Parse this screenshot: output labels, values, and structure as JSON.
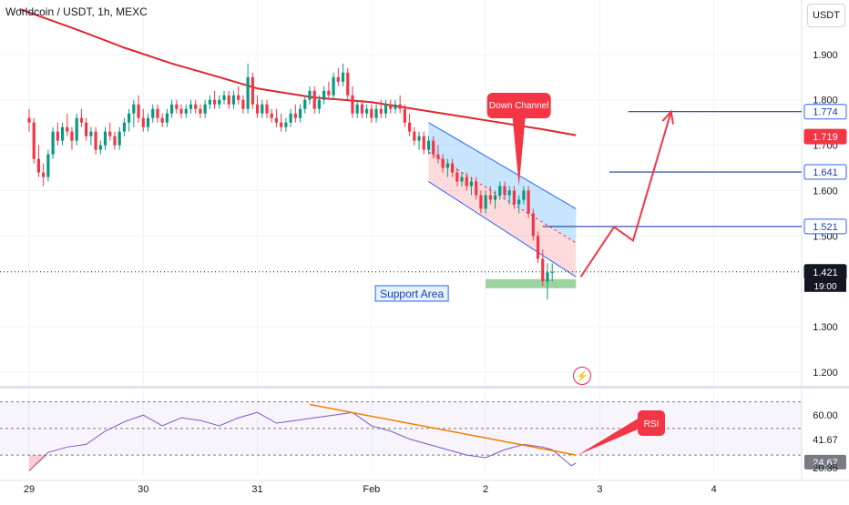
{
  "header": {
    "title": "Worldcoin / USDT, 1h, MEXC",
    "currency_button": "USDT"
  },
  "chart_data": [
    {
      "type": "candlestick",
      "pane": "price",
      "ylim": [
        1.17,
        2.02
      ],
      "yticks": [
        "1.900",
        "1.800",
        "1.700",
        "1.600",
        "1.500",
        "1.300",
        "1.200"
      ],
      "ytick_values": [
        1.9,
        1.8,
        1.7,
        1.6,
        1.5,
        1.3,
        1.2
      ],
      "x_labels": [
        "29",
        "30",
        "31",
        "Feb",
        "2",
        "3",
        "4"
      ],
      "x_label_values": [
        0,
        24,
        48,
        72,
        96,
        120,
        144
      ],
      "candles_ohlc": [
        [
          1.76,
          1.78,
          1.73,
          1.75
        ],
        [
          1.75,
          1.76,
          1.66,
          1.67
        ],
        [
          1.67,
          1.7,
          1.63,
          1.64
        ],
        [
          1.64,
          1.66,
          1.61,
          1.63
        ],
        [
          1.63,
          1.69,
          1.62,
          1.68
        ],
        [
          1.68,
          1.74,
          1.67,
          1.73
        ],
        [
          1.73,
          1.75,
          1.7,
          1.71
        ],
        [
          1.71,
          1.75,
          1.7,
          1.74
        ],
        [
          1.74,
          1.77,
          1.72,
          1.73
        ],
        [
          1.73,
          1.74,
          1.69,
          1.71
        ],
        [
          1.71,
          1.77,
          1.7,
          1.76
        ],
        [
          1.76,
          1.78,
          1.74,
          1.75
        ],
        [
          1.75,
          1.76,
          1.71,
          1.72
        ],
        [
          1.72,
          1.74,
          1.7,
          1.73
        ],
        [
          1.73,
          1.74,
          1.68,
          1.69
        ],
        [
          1.69,
          1.71,
          1.68,
          1.7
        ],
        [
          1.7,
          1.74,
          1.69,
          1.73
        ],
        [
          1.73,
          1.75,
          1.71,
          1.72
        ],
        [
          1.72,
          1.73,
          1.69,
          1.7
        ],
        [
          1.7,
          1.74,
          1.69,
          1.73
        ],
        [
          1.73,
          1.76,
          1.72,
          1.75
        ],
        [
          1.75,
          1.78,
          1.73,
          1.77
        ],
        [
          1.77,
          1.8,
          1.74,
          1.79
        ],
        [
          1.79,
          1.81,
          1.75,
          1.76
        ],
        [
          1.76,
          1.78,
          1.73,
          1.74
        ],
        [
          1.74,
          1.77,
          1.73,
          1.76
        ],
        [
          1.76,
          1.79,
          1.75,
          1.78
        ],
        [
          1.78,
          1.79,
          1.75,
          1.76
        ],
        [
          1.76,
          1.77,
          1.74,
          1.75
        ],
        [
          1.75,
          1.78,
          1.74,
          1.77
        ],
        [
          1.77,
          1.8,
          1.76,
          1.79
        ],
        [
          1.79,
          1.8,
          1.77,
          1.78
        ],
        [
          1.78,
          1.79,
          1.76,
          1.77
        ],
        [
          1.77,
          1.79,
          1.76,
          1.78
        ],
        [
          1.78,
          1.8,
          1.77,
          1.79
        ],
        [
          1.79,
          1.8,
          1.77,
          1.78
        ],
        [
          1.78,
          1.79,
          1.76,
          1.77
        ],
        [
          1.77,
          1.8,
          1.76,
          1.79
        ],
        [
          1.79,
          1.81,
          1.78,
          1.8
        ],
        [
          1.8,
          1.82,
          1.78,
          1.79
        ],
        [
          1.79,
          1.81,
          1.78,
          1.8
        ],
        [
          1.8,
          1.82,
          1.79,
          1.81
        ],
        [
          1.81,
          1.82,
          1.78,
          1.79
        ],
        [
          1.79,
          1.82,
          1.78,
          1.81
        ],
        [
          1.81,
          1.83,
          1.79,
          1.8
        ],
        [
          1.8,
          1.81,
          1.77,
          1.78
        ],
        [
          1.78,
          1.88,
          1.77,
          1.85
        ],
        [
          1.85,
          1.86,
          1.78,
          1.79
        ],
        [
          1.79,
          1.81,
          1.76,
          1.77
        ],
        [
          1.77,
          1.8,
          1.76,
          1.79
        ],
        [
          1.79,
          1.8,
          1.76,
          1.77
        ],
        [
          1.77,
          1.78,
          1.75,
          1.76
        ],
        [
          1.76,
          1.78,
          1.74,
          1.75
        ],
        [
          1.75,
          1.77,
          1.73,
          1.74
        ],
        [
          1.74,
          1.76,
          1.73,
          1.75
        ],
        [
          1.75,
          1.78,
          1.74,
          1.77
        ],
        [
          1.77,
          1.79,
          1.75,
          1.76
        ],
        [
          1.76,
          1.79,
          1.75,
          1.78
        ],
        [
          1.78,
          1.81,
          1.77,
          1.8
        ],
        [
          1.8,
          1.83,
          1.79,
          1.82
        ],
        [
          1.82,
          1.83,
          1.77,
          1.78
        ],
        [
          1.78,
          1.81,
          1.77,
          1.8
        ],
        [
          1.8,
          1.83,
          1.79,
          1.82
        ],
        [
          1.82,
          1.84,
          1.8,
          1.81
        ],
        [
          1.81,
          1.86,
          1.8,
          1.85
        ],
        [
          1.85,
          1.87,
          1.83,
          1.84
        ],
        [
          1.84,
          1.88,
          1.83,
          1.86
        ],
        [
          1.86,
          1.87,
          1.8,
          1.81
        ],
        [
          1.81,
          1.83,
          1.76,
          1.77
        ],
        [
          1.77,
          1.8,
          1.76,
          1.79
        ],
        [
          1.79,
          1.8,
          1.76,
          1.77
        ],
        [
          1.77,
          1.79,
          1.76,
          1.78
        ],
        [
          1.78,
          1.79,
          1.75,
          1.76
        ],
        [
          1.76,
          1.79,
          1.75,
          1.78
        ],
        [
          1.78,
          1.8,
          1.76,
          1.77
        ],
        [
          1.77,
          1.8,
          1.76,
          1.79
        ],
        [
          1.79,
          1.8,
          1.77,
          1.78
        ],
        [
          1.78,
          1.8,
          1.77,
          1.79
        ],
        [
          1.79,
          1.81,
          1.77,
          1.78
        ],
        [
          1.78,
          1.79,
          1.74,
          1.75
        ],
        [
          1.75,
          1.77,
          1.72,
          1.73
        ],
        [
          1.73,
          1.74,
          1.7,
          1.71
        ],
        [
          1.71,
          1.73,
          1.69,
          1.72
        ],
        [
          1.72,
          1.73,
          1.68,
          1.69
        ],
        [
          1.69,
          1.72,
          1.68,
          1.71
        ],
        [
          1.71,
          1.72,
          1.67,
          1.68
        ],
        [
          1.68,
          1.7,
          1.66,
          1.67
        ],
        [
          1.67,
          1.68,
          1.64,
          1.65
        ],
        [
          1.65,
          1.67,
          1.63,
          1.66
        ],
        [
          1.66,
          1.67,
          1.63,
          1.64
        ],
        [
          1.64,
          1.65,
          1.61,
          1.62
        ],
        [
          1.62,
          1.64,
          1.61,
          1.63
        ],
        [
          1.63,
          1.64,
          1.6,
          1.61
        ],
        [
          1.61,
          1.63,
          1.59,
          1.62
        ],
        [
          1.62,
          1.63,
          1.58,
          1.59
        ],
        [
          1.59,
          1.6,
          1.55,
          1.56
        ],
        [
          1.56,
          1.6,
          1.55,
          1.59
        ],
        [
          1.59,
          1.61,
          1.57,
          1.58
        ],
        [
          1.58,
          1.6,
          1.56,
          1.59
        ],
        [
          1.59,
          1.62,
          1.58,
          1.61
        ],
        [
          1.61,
          1.62,
          1.58,
          1.59
        ],
        [
          1.59,
          1.61,
          1.57,
          1.6
        ],
        [
          1.6,
          1.61,
          1.56,
          1.57
        ],
        [
          1.57,
          1.59,
          1.55,
          1.58
        ],
        [
          1.58,
          1.61,
          1.57,
          1.6
        ],
        [
          1.6,
          1.61,
          1.54,
          1.55
        ],
        [
          1.55,
          1.56,
          1.49,
          1.5
        ],
        [
          1.5,
          1.51,
          1.44,
          1.45
        ],
        [
          1.45,
          1.47,
          1.39,
          1.4
        ],
        [
          1.4,
          1.44,
          1.36,
          1.42
        ],
        [
          1.42,
          1.44,
          1.4,
          1.421
        ]
      ],
      "moving_average": [
        [
          -2,
          2.0
        ],
        [
          10,
          1.955
        ],
        [
          20,
          1.915
        ],
        [
          30,
          1.88
        ],
        [
          40,
          1.85
        ],
        [
          48,
          1.825
        ],
        [
          60,
          1.805
        ],
        [
          72,
          1.795
        ],
        [
          84,
          1.775
        ],
        [
          96,
          1.755
        ],
        [
          108,
          1.735
        ],
        [
          115,
          1.722
        ]
      ],
      "price_labels": [
        {
          "value": 1.774,
          "text": "1.774",
          "style": "outline"
        },
        {
          "value": 1.719,
          "text": "1.719",
          "style": "red"
        },
        {
          "value": 1.641,
          "text": "1.641",
          "style": "outline"
        },
        {
          "value": 1.521,
          "text": "1.521",
          "style": "outline"
        },
        {
          "value": 1.421,
          "text": "1.421",
          "style": "dark"
        }
      ],
      "countdown_label": "19:00",
      "target_levels": [
        {
          "value": 1.774,
          "x_start": 126
        },
        {
          "value": 1.641,
          "x_start": 122
        },
        {
          "value": 1.521,
          "x_start": 108
        }
      ],
      "current_price": 1.421,
      "down_channel": {
        "upper": [
          [
            84,
            1.75
          ],
          [
            115,
            1.56
          ]
        ],
        "lower": [
          [
            84,
            1.62
          ],
          [
            115,
            1.41
          ]
        ],
        "label": "Down Channel",
        "pointer_to": [
          103,
          1.61
        ]
      },
      "support_area": {
        "x": [
          96,
          115
        ],
        "y": [
          1.385,
          1.405
        ],
        "label": "Support Area"
      },
      "projection_path": [
        [
          116,
          1.41
        ],
        [
          123,
          1.52
        ],
        [
          127,
          1.49
        ],
        [
          135,
          1.774
        ]
      ]
    },
    {
      "type": "line",
      "pane": "rsi",
      "name": "RSI",
      "ylim": [
        15,
        80
      ],
      "yticks": [
        "60.00",
        "41.67",
        "24.67",
        "20.35"
      ],
      "ytick_values": [
        60,
        41.67,
        24.67,
        20.35
      ],
      "band_lines": [
        70,
        50,
        30
      ],
      "x": [
        0,
        4,
        8,
        12,
        16,
        20,
        24,
        28,
        32,
        36,
        40,
        44,
        48,
        52,
        56,
        60,
        64,
        68,
        72,
        76,
        80,
        84,
        88,
        92,
        96,
        100,
        104,
        108,
        110,
        112,
        114,
        115
      ],
      "values": [
        18,
        32,
        36,
        38,
        48,
        55,
        60,
        52,
        58,
        56,
        52,
        58,
        62,
        54,
        56,
        58,
        60,
        62,
        52,
        48,
        42,
        38,
        34,
        30,
        28,
        34,
        38,
        36,
        34,
        28,
        22,
        24
      ],
      "divergence": [
        [
          59,
          68
        ],
        [
          115,
          30
        ]
      ],
      "label": "RSI"
    }
  ],
  "annotations": {
    "down_channel_label": "Down Channel",
    "support_label": "Support Area",
    "rsi_label": "RSI"
  }
}
